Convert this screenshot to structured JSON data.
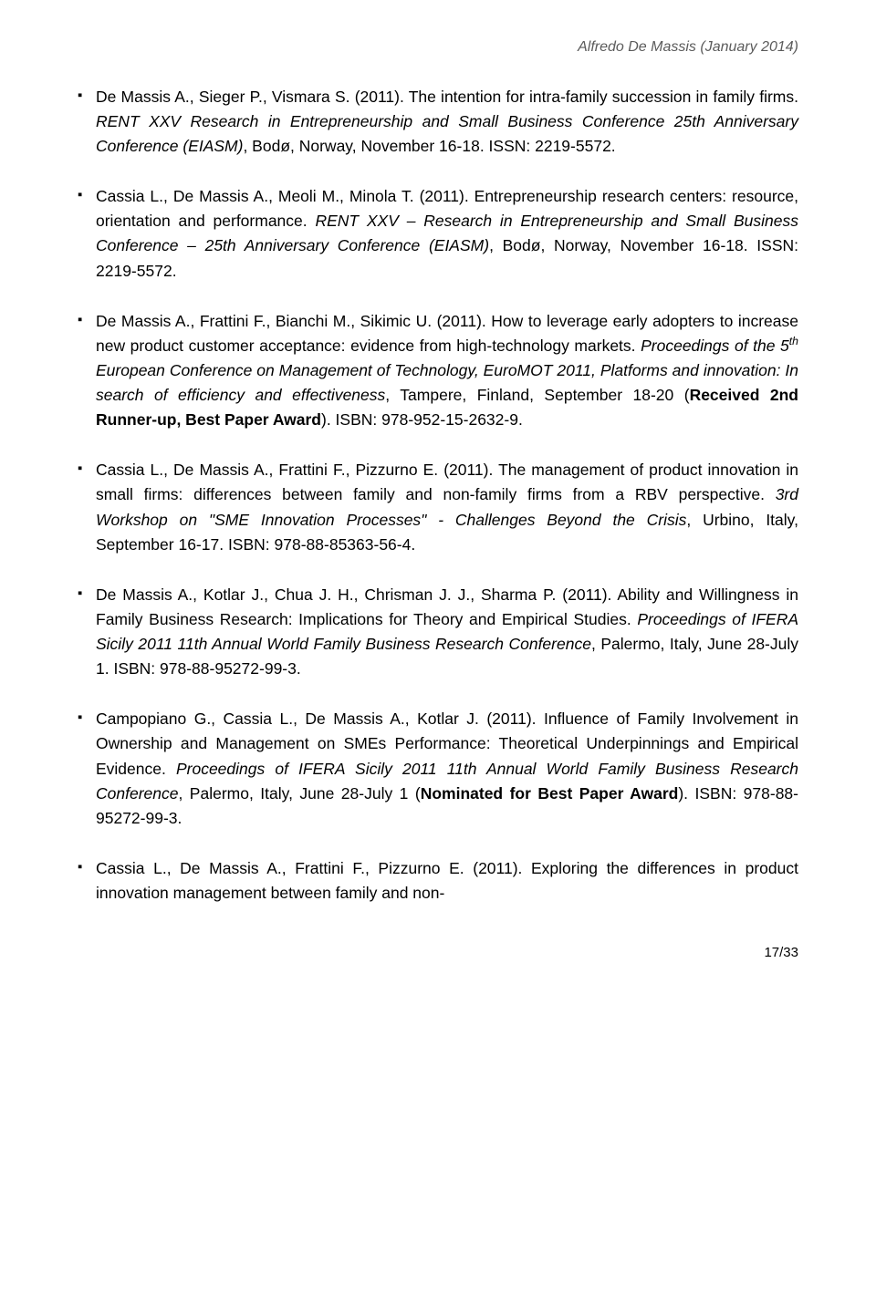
{
  "header": "Alfredo De Massis (January 2014)",
  "entries": [
    {
      "bullet": "▪",
      "segments": [
        {
          "t": "De Massis A., Sieger P., Vismara S. (2011). The intention for intra-family succession in family firms. "
        },
        {
          "t": "RENT XXV Research in Entrepreneurship and Small Business Conference 25th Anniversary Conference (EIASM)",
          "i": true
        },
        {
          "t": ", Bodø, Norway, November 16‐18. ISSN: 2219-5572."
        }
      ]
    },
    {
      "bullet": "▪",
      "segments": [
        {
          "t": "Cassia L., De Massis A., Meoli M., Minola T. (2011). Entrepreneurship research centers: resource, orientation and performance. "
        },
        {
          "t": "RENT XXV – Research in Entrepreneurship and Small Business Conference – 25th Anniversary Conference (EIASM)",
          "i": true
        },
        {
          "t": ", Bodø, Norway, November 16‐18. ISSN: 2219-5572."
        }
      ]
    },
    {
      "bullet": "▪",
      "segments": [
        {
          "t": "De Massis A., Frattini F., Bianchi M., Sikimic U. (2011). How to leverage early adopters to increase new product customer acceptance: evidence from high-technology markets. "
        },
        {
          "t": "Proceedings of the 5",
          "i": true
        },
        {
          "t": "th",
          "i": true,
          "sup": true
        },
        {
          "t": " European Conference on Management of Technology, EuroMOT 2011, Platforms and innovation: In search of efficiency and effectiveness",
          "i": true
        },
        {
          "t": ", Tampere, Finland, September 18-20 ("
        },
        {
          "t": "Received 2nd Runner-up, Best Paper Award",
          "b": true
        },
        {
          "t": "). ISBN: 978-952-15-2632-9."
        }
      ]
    },
    {
      "bullet": "▪",
      "segments": [
        {
          "t": "Cassia L., De Massis A., Frattini F., Pizzurno E. (2011). The management of product innovation in small firms: differences between family and non-family firms from a RBV perspective. "
        },
        {
          "t": "3rd Workshop on \"SME Innovation Processes\" - Challenges Beyond the Crisis",
          "i": true
        },
        {
          "t": ", Urbino, Italy, September 16-17. ISBN: 978-88-85363-56-4."
        }
      ]
    },
    {
      "bullet": "▪",
      "segments": [
        {
          "t": "De Massis A., Kotlar J., Chua J. H., Chrisman J. J., Sharma P. (2011). Ability and Willingness in Family Business Research: Implications for Theory and Empirical Studies. "
        },
        {
          "t": "Proceedings of IFERA Sicily 2011 11th Annual World Family Business Research Conference",
          "i": true
        },
        {
          "t": ", Palermo, Italy, June 28-July 1. ISBN: 978-88-95272-99-3."
        }
      ]
    },
    {
      "bullet": "▪",
      "segments": [
        {
          "t": "Campopiano G., Cassia L., De Massis A., Kotlar J. (2011). Influence of Family Involvement in Ownership and Management on SMEs Performance: Theoretical Underpinnings and Empirical Evidence. "
        },
        {
          "t": "Proceedings of IFERA Sicily 2011 11th Annual World Family Business Research Conference",
          "i": true
        },
        {
          "t": ", Palermo, Italy, June 28-July 1 ("
        },
        {
          "t": "Nominated for Best Paper Award",
          "b": true
        },
        {
          "t": "). ISBN: 978-88-95272-99-3."
        }
      ]
    },
    {
      "bullet": "▪",
      "segments": [
        {
          "t": "Cassia L., De Massis A., Frattini F., Pizzurno E. (2011). Exploring the differences in product innovation management between family and non-"
        }
      ]
    }
  ],
  "footer": "17/33"
}
